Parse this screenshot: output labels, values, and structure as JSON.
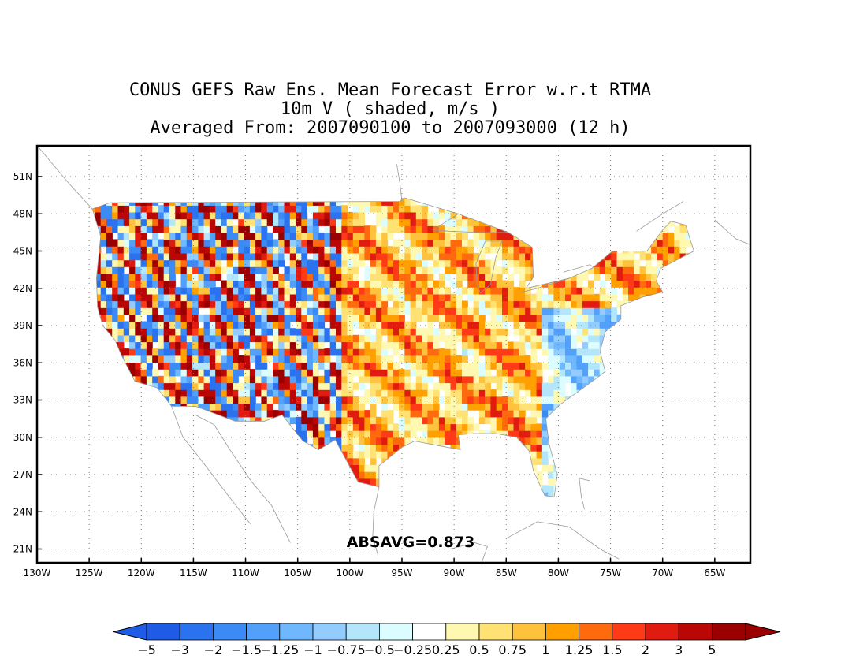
{
  "title": {
    "line1": "CONUS GEFS Raw Ens. Mean Forecast Error w.r.t RTMA",
    "line2": "10m V ( shaded, m/s )",
    "line3": "Averaged From: 2007090100 to 2007093000 (12 h)"
  },
  "stat_label": "ABSAVG=0.873",
  "map": {
    "lon_range": [
      -130,
      -60
    ],
    "lat_range": [
      19.5,
      52.5
    ],
    "lat_ticks": [
      {
        "value": 51,
        "label": "51N"
      },
      {
        "value": 48,
        "label": "48N"
      },
      {
        "value": 45,
        "label": "45N"
      },
      {
        "value": 42,
        "label": "42N"
      },
      {
        "value": 39,
        "label": "39N"
      },
      {
        "value": 36,
        "label": "36N"
      },
      {
        "value": 33,
        "label": "33N"
      },
      {
        "value": 30,
        "label": "30N"
      },
      {
        "value": 27,
        "label": "27N"
      },
      {
        "value": 24,
        "label": "24N"
      },
      {
        "value": 21,
        "label": "21N"
      }
    ],
    "lon_ticks": [
      {
        "value": -130,
        "label": "130W"
      },
      {
        "value": -125,
        "label": "125W"
      },
      {
        "value": -120,
        "label": "120W"
      },
      {
        "value": -115,
        "label": "115W"
      },
      {
        "value": -110,
        "label": "110W"
      },
      {
        "value": -105,
        "label": "105W"
      },
      {
        "value": -100,
        "label": "100W"
      },
      {
        "value": -95,
        "label": "95W"
      },
      {
        "value": -90,
        "label": "90W"
      },
      {
        "value": -85,
        "label": "85W"
      },
      {
        "value": -80,
        "label": "80W"
      },
      {
        "value": -75,
        "label": "75W"
      },
      {
        "value": -70,
        "label": "70W"
      },
      {
        "value": -65,
        "label": "65W"
      }
    ],
    "grid": true,
    "field_regions": [
      {
        "name": "west",
        "dominant": "mixed strong positive/negative"
      },
      {
        "name": "plains",
        "dominant": "weak positive"
      },
      {
        "name": "southeast",
        "dominant": "negative"
      }
    ]
  },
  "colorbar": {
    "labels": [
      "-5",
      "-3",
      "-2",
      "-1.5",
      "-1.25",
      "-1",
      "-0.75",
      "-0.5",
      "-0.25",
      "0.25",
      "0.5",
      "0.75",
      "1",
      "1.25",
      "1.5",
      "2",
      "3",
      "5"
    ],
    "colors": [
      "#1e5ce6",
      "#2a72ee",
      "#3c8af6",
      "#52a0fa",
      "#6fb8fd",
      "#93ccff",
      "#b4e6fb",
      "#dcfdff",
      "#ffffff",
      "#fff8b0",
      "#ffe273",
      "#ffc23c",
      "#ffa000",
      "#ff6a0f",
      "#ff3a16",
      "#e01b10",
      "#bb0606",
      "#9a0000"
    ],
    "under_color": "#1e5ce6",
    "over_color": "#9a0000"
  }
}
